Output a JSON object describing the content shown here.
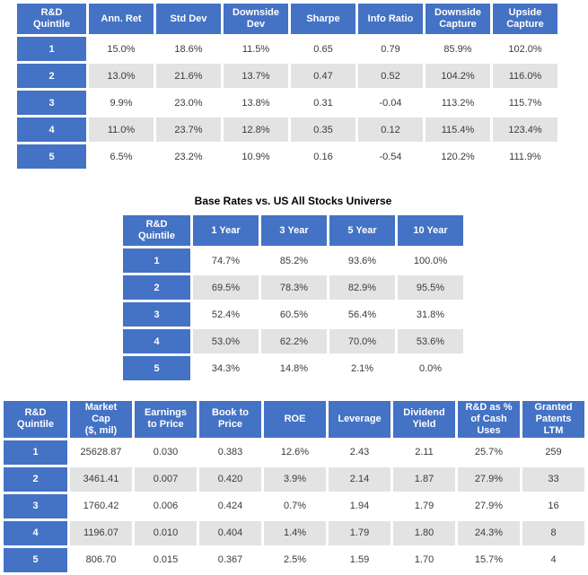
{
  "colors": {
    "header_bg": "#4472C4",
    "header_text": "#FFFFFF",
    "band_row_bg": "#E3E3E3",
    "plain_row_bg": "#FFFFFF",
    "data_text": "#3B3B3B",
    "title_text": "#000000"
  },
  "performance_table": {
    "columns": [
      "R&D\nQuintile",
      "Ann. Ret",
      "Std Dev",
      "Downside\nDev",
      "Sharpe",
      "Info Ratio",
      "Downside\nCapture",
      "Upside\nCapture"
    ],
    "rows": [
      [
        "1",
        "15.0%",
        "18.6%",
        "11.5%",
        "0.65",
        "0.79",
        "85.9%",
        "102.0%"
      ],
      [
        "2",
        "13.0%",
        "21.6%",
        "13.7%",
        "0.47",
        "0.52",
        "104.2%",
        "116.0%"
      ],
      [
        "3",
        "9.9%",
        "23.0%",
        "13.8%",
        "0.31",
        "-0.04",
        "113.2%",
        "115.7%"
      ],
      [
        "4",
        "11.0%",
        "23.7%",
        "12.8%",
        "0.35",
        "0.12",
        "115.4%",
        "123.4%"
      ],
      [
        "5",
        "6.5%",
        "23.2%",
        "10.9%",
        "0.16",
        "-0.54",
        "120.2%",
        "111.9%"
      ]
    ]
  },
  "base_rates_table": {
    "title": "Base Rates vs. US All Stocks Universe",
    "columns": [
      "R&D\nQuintile",
      "1 Year",
      "3 Year",
      "5 Year",
      "10 Year"
    ],
    "rows": [
      [
        "1",
        "74.7%",
        "85.2%",
        "93.6%",
        "100.0%"
      ],
      [
        "2",
        "69.5%",
        "78.3%",
        "82.9%",
        "95.5%"
      ],
      [
        "3",
        "52.4%",
        "60.5%",
        "56.4%",
        "31.8%"
      ],
      [
        "4",
        "53.0%",
        "62.2%",
        "70.0%",
        "53.6%"
      ],
      [
        "5",
        "34.3%",
        "14.8%",
        "2.1%",
        "0.0%"
      ]
    ]
  },
  "fundamentals_table": {
    "columns": [
      "R&D\nQuintile",
      "Market\nCap\n($, mil)",
      "Earnings\nto Price",
      "Book to\nPrice",
      "ROE",
      "Leverage",
      "Dividend\nYield",
      "R&D as %\nof Cash\nUses",
      "Granted\nPatents\nLTM"
    ],
    "rows": [
      [
        "1",
        "25628.87",
        "0.030",
        "0.383",
        "12.6%",
        "2.43",
        "2.11",
        "25.7%",
        "259"
      ],
      [
        "2",
        "3461.41",
        "0.007",
        "0.420",
        "3.9%",
        "2.14",
        "1.87",
        "27.9%",
        "33"
      ],
      [
        "3",
        "1760.42",
        "0.006",
        "0.424",
        "0.7%",
        "1.94",
        "1.79",
        "27.9%",
        "16"
      ],
      [
        "4",
        "1196.07",
        "0.010",
        "0.404",
        "1.4%",
        "1.79",
        "1.80",
        "24.3%",
        "8"
      ],
      [
        "5",
        "806.70",
        "0.015",
        "0.367",
        "2.5%",
        "1.59",
        "1.70",
        "15.7%",
        "4"
      ]
    ]
  }
}
